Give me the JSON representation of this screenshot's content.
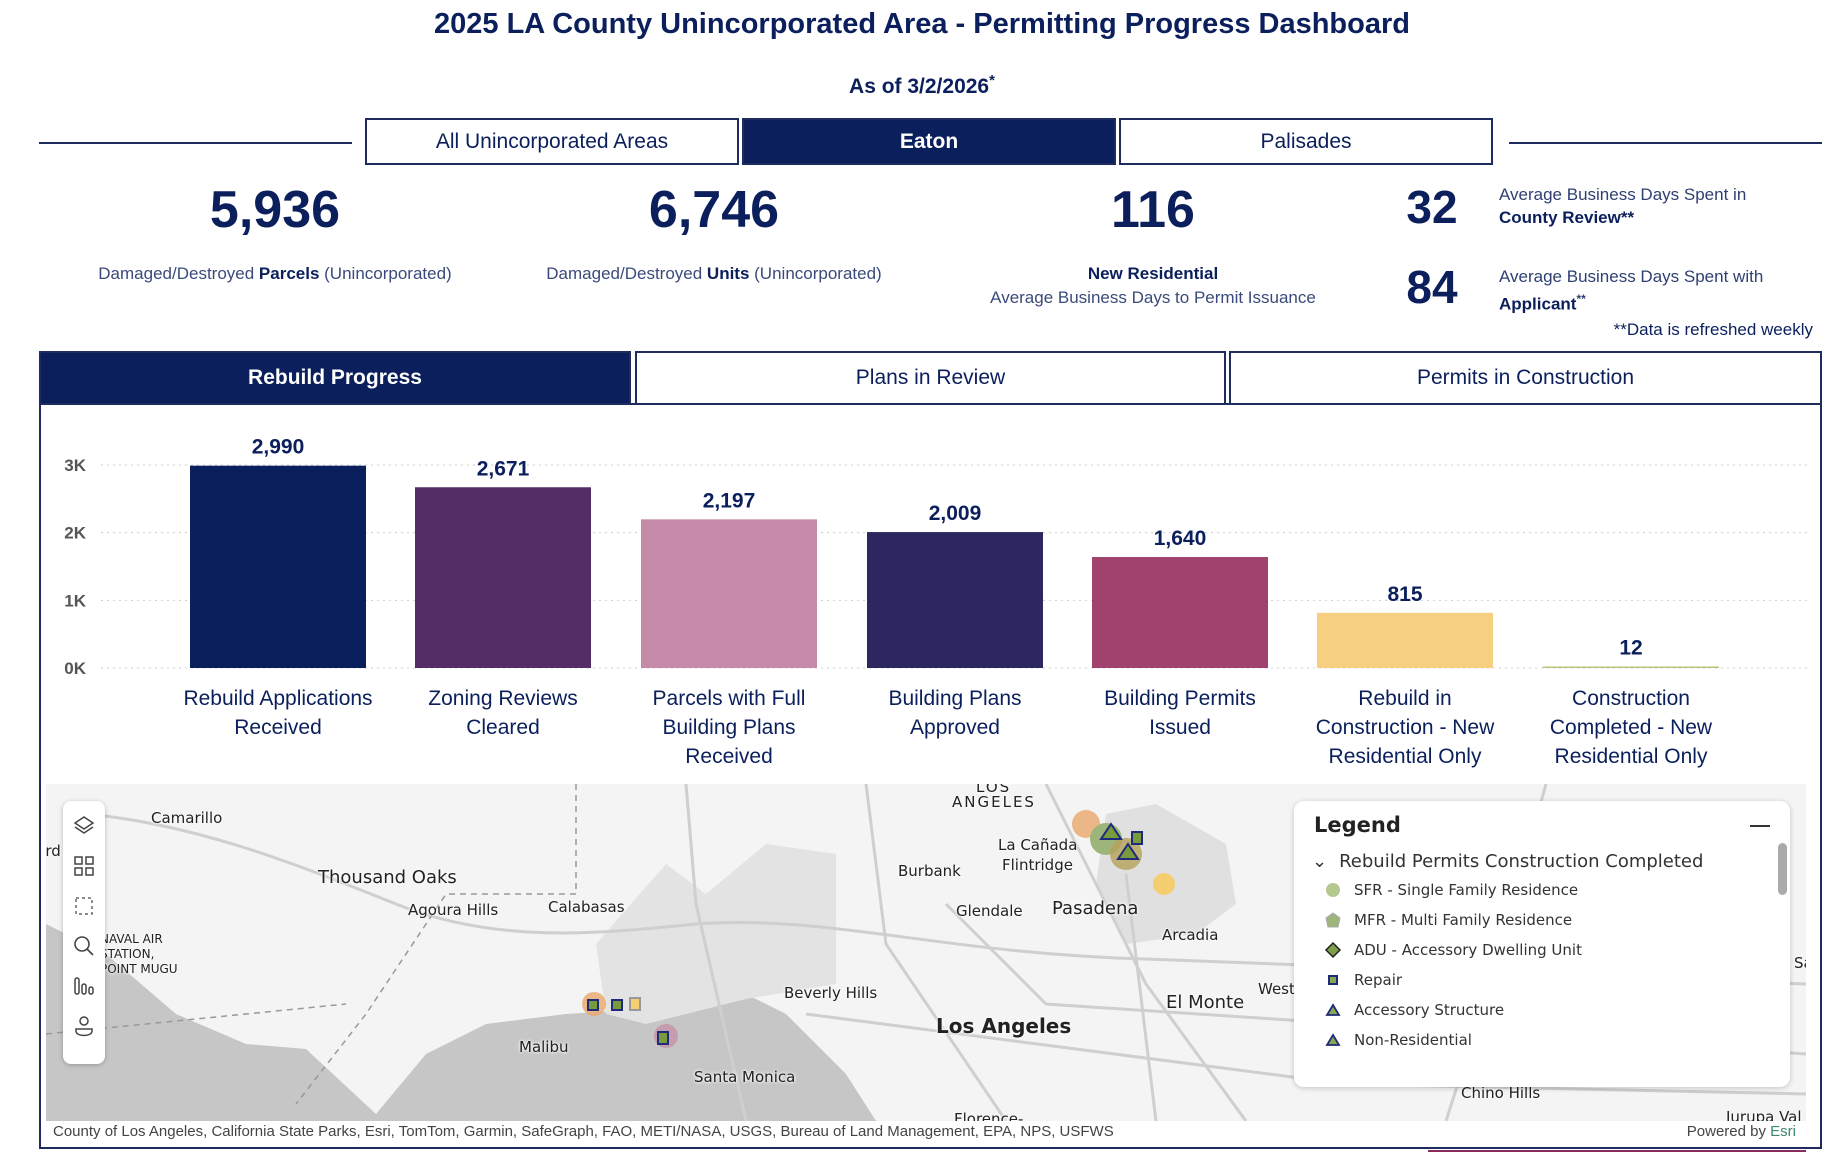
{
  "header": {
    "title": "2025 LA County Unincorporated Area - Permitting Progress Dashboard",
    "as_of": "As of 3/2/2026",
    "as_of_mark": "*"
  },
  "area_tabs": [
    {
      "label": "All Unincorporated Areas",
      "active": false
    },
    {
      "label": "Eaton",
      "active": true
    },
    {
      "label": "Palisades",
      "active": false
    }
  ],
  "kpis": {
    "parcels": {
      "value": "5,936",
      "pre": "Damaged/Destroyed ",
      "bold": "Parcels",
      "post": " (Unincorporated)"
    },
    "units": {
      "value": "6,746",
      "pre": "Damaged/Destroyed ",
      "bold": "Units",
      "post": " (Unincorporated)"
    },
    "new_res": {
      "value": "116",
      "line1": "New Residential",
      "line2": "Average Business Days to Permit Issuance"
    },
    "county_review": {
      "value": "32",
      "pre": "Average Business Days Spent in",
      "bold": "County Review**"
    },
    "applicant": {
      "value": "84",
      "pre": "Average Business Days Spent with",
      "bold": "Applicant",
      "mark": "**"
    },
    "note": "**Data is refreshed weekly"
  },
  "view_tabs": [
    {
      "label": "Rebuild Progress",
      "active": true
    },
    {
      "label": "Plans in Review",
      "active": false
    },
    {
      "label": "Permits in Construction",
      "active": false
    }
  ],
  "chart_data": {
    "type": "bar",
    "categories": [
      [
        "Rebuild Applications",
        "Received"
      ],
      [
        "Zoning Reviews",
        "Cleared"
      ],
      [
        "Parcels with Full",
        "Building Plans",
        "Received"
      ],
      [
        "Building Plans",
        "Approved"
      ],
      [
        "Building Permits",
        "Issued"
      ],
      [
        "Rebuild in",
        "Construction - New",
        "Residential Only"
      ],
      [
        "Construction",
        "Completed - New",
        "Residential Only"
      ]
    ],
    "values": [
      2990,
      2671,
      2197,
      2009,
      1640,
      815,
      12
    ],
    "value_labels": [
      "2,990",
      "2,671",
      "2,197",
      "2,009",
      "1,640",
      "815",
      "12"
    ],
    "colors": [
      "#0b1f5c",
      "#552d66",
      "#c48aa7",
      "#2d2760",
      "#a0416e",
      "#f6cf80",
      "#b9c47c"
    ],
    "yticks": [
      "0K",
      "1K",
      "2K",
      "3K"
    ],
    "ylim": [
      0,
      3000
    ],
    "grid": true
  },
  "map": {
    "labels": [
      "LOS",
      "ANGELES",
      "Camarillo",
      "Thousand Oaks",
      "Agoura Hills",
      "Calabasas",
      "La Cañada",
      "Flintridge",
      "Burbank",
      "Glendale",
      "Pasadena",
      "Arcadia",
      "NAVAL AIR",
      "STATION,",
      "POINT MUGU",
      "Beverly Hills",
      "Los Angeles",
      "El Monte",
      "West",
      "Malibu",
      "Santa Monica",
      "Florence-",
      "Chino Hills",
      "Jurupa Val",
      "Oxnard",
      "Santa"
    ],
    "attribution": "County of Los Angeles, California State Parks, Esri, TomTom, Garmin, SafeGraph, FAO, METI/NASA, USGS, Bureau of Land Management, EPA, NPS, USFWS",
    "powered_by": "Powered by ",
    "esri": "Esri",
    "tools": [
      "layers-icon",
      "qr-grid-icon",
      "select-box-icon",
      "search-icon",
      "chart-bars-icon",
      "user-icon"
    ]
  },
  "legend": {
    "title": "Legend",
    "layer": "Rebuild Permits Construction Completed",
    "items": [
      {
        "label": "SFR - Single Family Residence",
        "icon": "circle",
        "color": "#b5c98e"
      },
      {
        "label": "MFR - Multi Family Residence",
        "icon": "pentagon",
        "color": "#9db57a"
      },
      {
        "label": "ADU - Accessory Dwelling Unit",
        "icon": "diamond",
        "color": "#7f9e4a"
      },
      {
        "label": "Repair",
        "icon": "square",
        "color": "#8aa64f"
      },
      {
        "label": "Accessory Structure",
        "icon": "triangle",
        "color": "#8aa64f"
      },
      {
        "label": "Non-Residential",
        "icon": "triangle",
        "color": "#8aa64f"
      }
    ]
  }
}
